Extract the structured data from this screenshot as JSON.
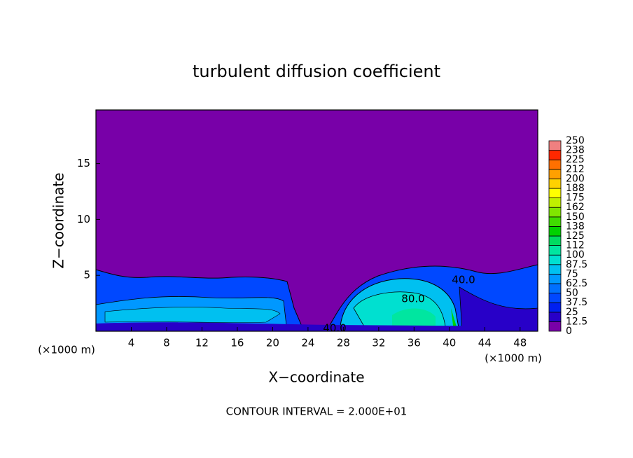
{
  "chart_data": {
    "type": "contour",
    "title": "turbulent diffusion coefficient",
    "xlabel": "X−coordinate",
    "ylabel": "Z−coordinate",
    "x_unit_left": "(×1000 m)",
    "x_unit_right": "(×1000 m)",
    "footer": "CONTOUR INTERVAL = 2.000E+01",
    "xlim": [
      0,
      50
    ],
    "xticks": [
      4,
      8,
      12,
      16,
      20,
      24,
      28,
      32,
      36,
      40,
      44,
      48
    ],
    "ylim": [
      0,
      19.8
    ],
    "yticks": [
      5,
      10,
      15
    ],
    "colorbar_levels": [
      0,
      12.5,
      25,
      37.5,
      50,
      62.5,
      75,
      87.5,
      100,
      112,
      125,
      138,
      150,
      162,
      175,
      188,
      200,
      212,
      225,
      238,
      250
    ],
    "colors": [
      "#7800a8",
      "#2800c8",
      "#0020f0",
      "#0048ff",
      "#0070ff",
      "#0098ff",
      "#00c0f0",
      "#00e0d0",
      "#00e6a0",
      "#00dc60",
      "#00d200",
      "#40dc00",
      "#80e600",
      "#c0f000",
      "#ffff00",
      "#ffd200",
      "#ffa000",
      "#ff7000",
      "#ff2800",
      "#f08080"
    ],
    "contour_labels": [
      "80.0",
      "40.0",
      "40.0"
    ]
  }
}
